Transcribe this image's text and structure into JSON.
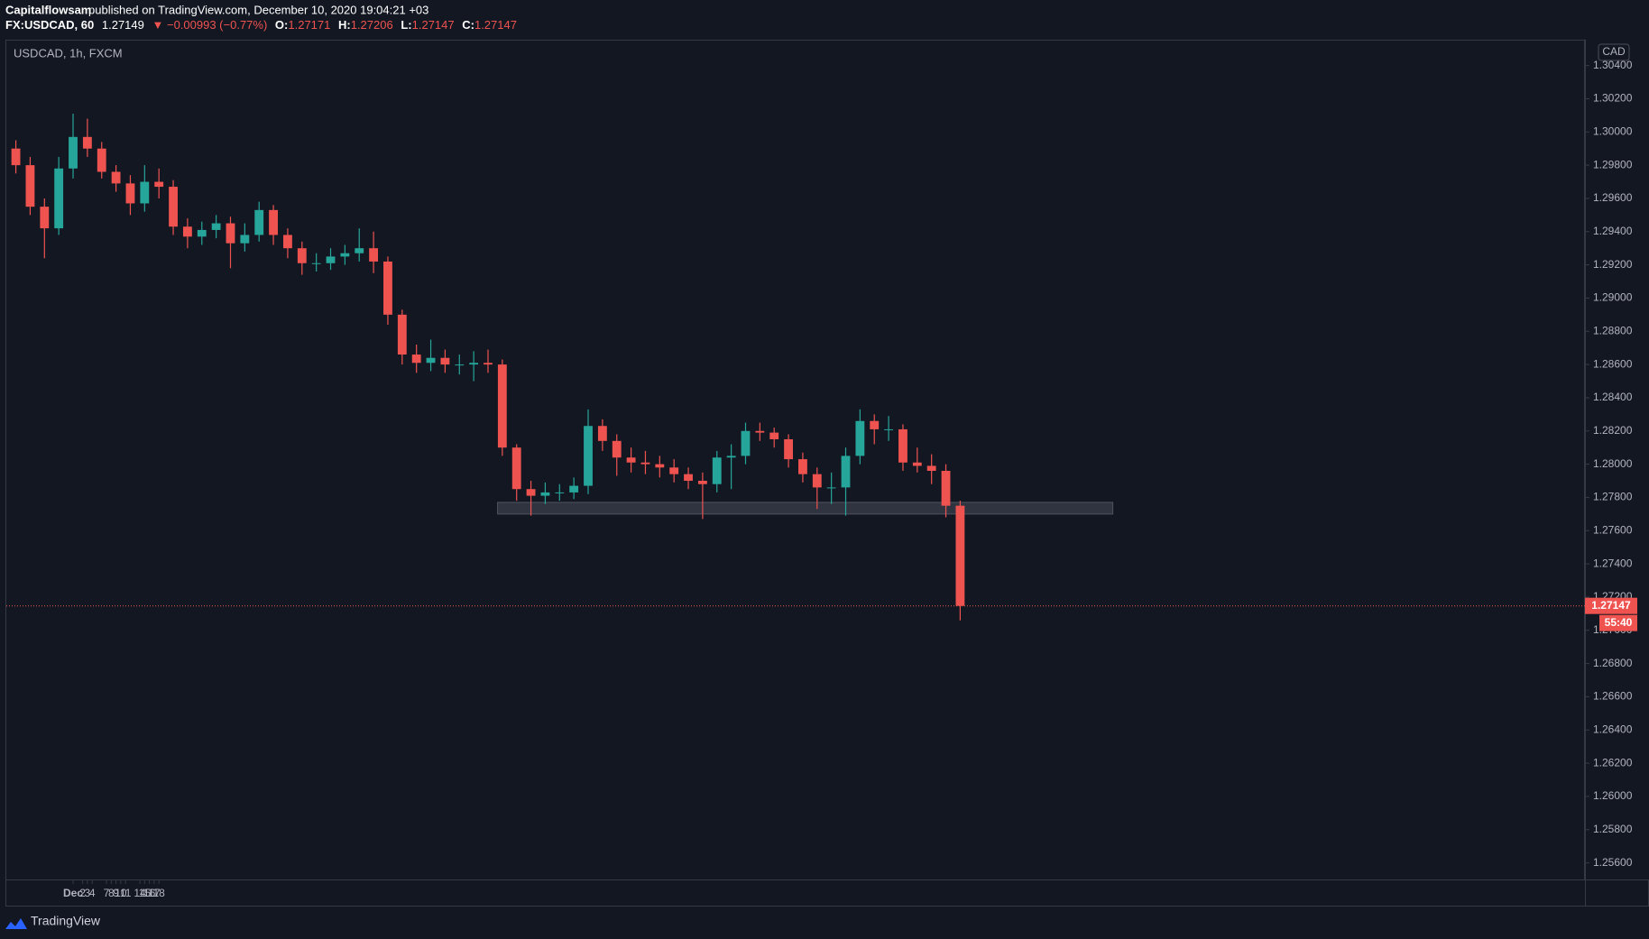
{
  "header": {
    "publisher": "Capitalflowsam",
    "published": "published on TradingView.com, December 10, 2020 19:04:21 +03"
  },
  "ticker": {
    "symbol": "FX:USDCAD, 60",
    "last": "1.27149",
    "change": "▼ −0.00993 (−0.77%)",
    "o_label": "O:",
    "o": "1.27171",
    "h_label": "H:",
    "h": "1.27206",
    "l_label": "L:",
    "l": "1.27147",
    "c_label": "C:",
    "c": "1.27147"
  },
  "footer": {
    "brand": "TradingView"
  },
  "chart_data": {
    "type": "candlestick",
    "title": "USDCAD, 1h, FXCM",
    "currency": "CAD",
    "up_color": "#26a69a",
    "down_color": "#ef5350",
    "x": [
      -12,
      -9,
      -6,
      -3,
      0,
      3,
      6,
      9,
      12,
      15,
      18,
      21,
      24,
      27,
      30,
      33,
      36,
      39,
      42,
      45,
      48,
      51,
      54,
      57,
      60,
      63,
      66,
      69,
      72,
      75,
      78,
      81,
      84,
      87,
      90,
      93,
      96,
      99,
      102,
      105,
      108,
      111,
      114,
      117,
      120,
      123,
      126,
      129,
      132,
      135,
      138,
      141,
      144,
      147,
      150,
      153,
      156,
      159,
      162,
      165,
      168,
      171,
      174,
      177,
      180,
      183,
      186
    ],
    "open": [
      1.299,
      1.298,
      1.2955,
      1.2942,
      1.2978,
      1.2997,
      1.299,
      1.2976,
      1.2969,
      1.2957,
      1.297,
      1.2967,
      1.2943,
      1.2937,
      1.2941,
      1.2945,
      1.2933,
      1.2938,
      1.2953,
      1.2938,
      1.293,
      1.2921,
      1.2921,
      1.2925,
      1.2927,
      1.293,
      1.2922,
      1.289,
      1.2866,
      1.2861,
      1.2864,
      1.286,
      1.286,
      1.2861,
      1.286,
      1.281,
      1.2785,
      1.2781,
      1.2783,
      1.2783,
      1.2787,
      1.2823,
      1.2814,
      1.2804,
      1.2801,
      1.28,
      1.2798,
      1.2794,
      1.279,
      1.2788,
      1.2804,
      1.2805,
      1.282,
      1.2819,
      1.2815,
      1.2803,
      1.2794,
      1.2786,
      1.2786,
      1.2805,
      1.2826,
      1.2821,
      1.2821,
      1.2801,
      1.2799,
      1.2796,
      1.2775
    ],
    "high": [
      1.2995,
      1.2985,
      1.296,
      1.2985,
      1.3011,
      1.3008,
      1.2994,
      1.298,
      1.2974,
      1.298,
      1.2978,
      1.2971,
      1.2948,
      1.2946,
      1.295,
      1.2949,
      1.2945,
      1.2958,
      1.2956,
      1.2942,
      1.2934,
      1.2927,
      1.293,
      1.2932,
      1.2942,
      1.294,
      1.2925,
      1.2893,
      1.2872,
      1.2875,
      1.2869,
      1.2866,
      1.2868,
      1.2869,
      1.2863,
      1.2812,
      1.279,
      1.2789,
      1.2788,
      1.2792,
      1.2833,
      1.2827,
      1.2818,
      1.281,
      1.2808,
      1.2805,
      1.2803,
      1.2798,
      1.2795,
      1.2808,
      1.2812,
      1.2825,
      1.2825,
      1.2822,
      1.2818,
      1.2807,
      1.2798,
      1.2795,
      1.281,
      1.2833,
      1.283,
      1.2829,
      1.2824,
      1.281,
      1.2806,
      1.28,
      1.2778
    ],
    "low": [
      1.2975,
      1.295,
      1.2924,
      1.2938,
      1.2972,
      1.2985,
      1.2972,
      1.2964,
      1.295,
      1.2952,
      1.296,
      1.2938,
      1.293,
      1.2932,
      1.2936,
      1.2918,
      1.2928,
      1.2934,
      1.2932,
      1.2924,
      1.2914,
      1.2916,
      1.2917,
      1.292,
      1.2922,
      1.2915,
      1.2884,
      1.286,
      1.2855,
      1.2856,
      1.2855,
      1.2854,
      1.285,
      1.2855,
      1.2805,
      1.2778,
      1.2769,
      1.2776,
      1.2778,
      1.2779,
      1.2782,
      1.2808,
      1.2793,
      1.2795,
      1.2794,
      1.2792,
      1.2789,
      1.2785,
      1.2767,
      1.2783,
      1.2785,
      1.28,
      1.2814,
      1.281,
      1.2798,
      1.2789,
      1.2773,
      1.2776,
      1.2769,
      1.28,
      1.2812,
      1.2814,
      1.2796,
      1.2795,
      1.2788,
      1.2768,
      1.2706
    ],
    "close": [
      1.298,
      1.2955,
      1.2942,
      1.2978,
      1.2997,
      1.299,
      1.2976,
      1.2969,
      1.2957,
      1.297,
      1.2967,
      1.2943,
      1.2937,
      1.2941,
      1.2945,
      1.2933,
      1.2938,
      1.2953,
      1.2938,
      1.293,
      1.2921,
      1.2921,
      1.2925,
      1.2927,
      1.293,
      1.2922,
      1.289,
      1.2866,
      1.2861,
      1.2864,
      1.286,
      1.286,
      1.2861,
      1.286,
      1.281,
      1.2785,
      1.2781,
      1.2783,
      1.2783,
      1.2787,
      1.2823,
      1.2814,
      1.2804,
      1.2801,
      1.28,
      1.2798,
      1.2794,
      1.279,
      1.2788,
      1.2804,
      1.2805,
      1.282,
      1.2819,
      1.2815,
      1.2803,
      1.2794,
      1.2786,
      1.2786,
      1.2805,
      1.2826,
      1.2821,
      1.2821,
      1.2801,
      1.2799,
      1.2796,
      1.2775,
      1.27147
    ],
    "xlim": [
      -14,
      317
    ],
    "xticks": [
      {
        "value": 0,
        "label": "Dec"
      },
      2,
      3,
      4,
      7,
      8,
      9,
      10,
      11,
      14,
      15,
      16,
      17,
      18
    ],
    "ylim": [
      1.255,
      1.3055
    ],
    "yticks": [
      {
        "value": 1.256,
        "label": "1.25600"
      },
      {
        "value": 1.258,
        "label": "1.25800"
      },
      {
        "value": 1.26,
        "label": "1.26000"
      },
      {
        "value": 1.262,
        "label": "1.26200"
      },
      {
        "value": 1.264,
        "label": "1.26400"
      },
      {
        "value": 1.266,
        "label": "1.26600"
      },
      {
        "value": 1.268,
        "label": "1.26800"
      },
      {
        "value": 1.27,
        "label": "1.27000"
      },
      {
        "value": 1.272,
        "label": "1.27200"
      },
      {
        "value": 1.274,
        "label": "1.27400"
      },
      {
        "value": 1.276,
        "label": "1.27600"
      },
      {
        "value": 1.278,
        "label": "1.27800"
      },
      {
        "value": 1.28,
        "label": "1.28000"
      },
      {
        "value": 1.282,
        "label": "1.28200"
      },
      {
        "value": 1.284,
        "label": "1.28400"
      },
      {
        "value": 1.286,
        "label": "1.28600"
      },
      {
        "value": 1.288,
        "label": "1.28800"
      },
      {
        "value": 1.29,
        "label": "1.29000"
      },
      {
        "value": 1.292,
        "label": "1.29200"
      },
      {
        "value": 1.294,
        "label": "1.29400"
      },
      {
        "value": 1.296,
        "label": "1.29600"
      },
      {
        "value": 1.298,
        "label": "1.29800"
      },
      {
        "value": 1.3,
        "label": "1.30000"
      },
      {
        "value": 1.302,
        "label": "1.30200"
      },
      {
        "value": 1.304,
        "label": "1.30400"
      }
    ],
    "zone": {
      "x": [
        89,
        218
      ],
      "y": [
        1.277,
        1.2777
      ],
      "color": "#363a45"
    },
    "current_price": 1.27147,
    "countdown": "55:40",
    "grid": false
  }
}
